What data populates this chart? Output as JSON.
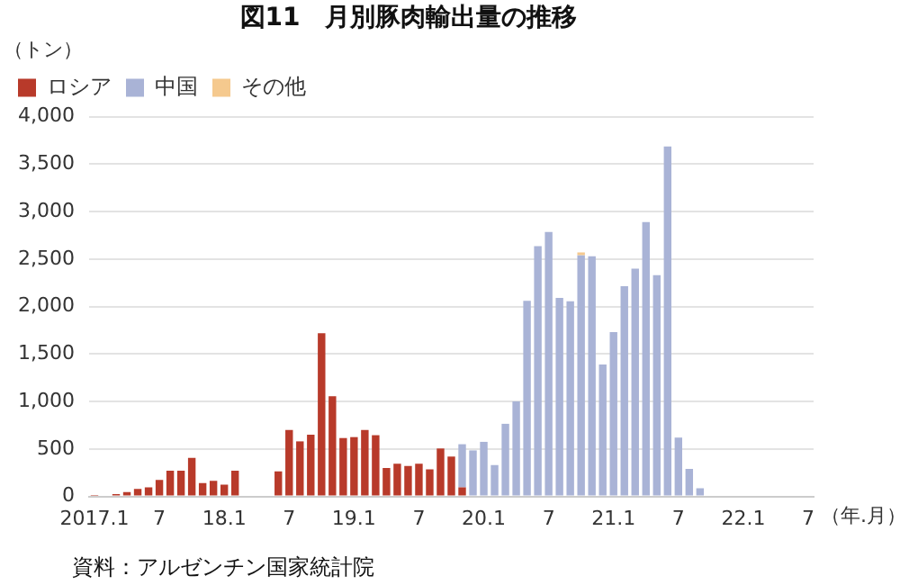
{
  "chart_data": {
    "type": "bar",
    "title": "図11　月別豚肉輸出量の推移",
    "ylabel": "（トン）",
    "xlabel": "（年.月）",
    "annotations": [
      "資料：アルゼンチン国家統計院"
    ],
    "categories": [
      "2017.1",
      null,
      null,
      null,
      null,
      null,
      "7",
      null,
      null,
      null,
      null,
      null,
      "18.1",
      null,
      null,
      null,
      null,
      null,
      "7",
      null,
      null,
      null,
      null,
      null,
      "19.1",
      null,
      null,
      null,
      null,
      null,
      "7",
      null,
      null,
      null,
      null,
      null,
      "20.1",
      null,
      null,
      null,
      null,
      null,
      "7",
      null,
      null,
      null,
      null,
      null,
      "21.1",
      null,
      null,
      null,
      null,
      null,
      "7",
      null,
      null,
      null,
      null,
      null,
      "22.1",
      null,
      null,
      null,
      null,
      null,
      "7"
    ],
    "series": [
      {
        "name": "ロシア",
        "color": "#b83a2a",
        "values": [
          15,
          null,
          25,
          45,
          80,
          95,
          175,
          270,
          270,
          405,
          140,
          165,
          125,
          270,
          null,
          null,
          null,
          265,
          700,
          580,
          650,
          1720,
          1055,
          615,
          625,
          700,
          645,
          300,
          345,
          320,
          345,
          285,
          505,
          420,
          95,
          null,
          null,
          null,
          null,
          null,
          null,
          null,
          null,
          null,
          null,
          null,
          null,
          null,
          null,
          null,
          null,
          null,
          null,
          null,
          null,
          null,
          null,
          null,
          null,
          null,
          null,
          null,
          null,
          null,
          null,
          null,
          null
        ]
      },
      {
        "name": "中国",
        "color": "#a9b3d6",
        "values": [
          null,
          null,
          null,
          null,
          null,
          null,
          null,
          null,
          null,
          null,
          null,
          null,
          null,
          null,
          null,
          null,
          null,
          null,
          null,
          null,
          null,
          null,
          null,
          null,
          null,
          null,
          null,
          null,
          null,
          null,
          null,
          null,
          null,
          null,
          455,
          485,
          575,
          330,
          765,
          1000,
          2060,
          2635,
          2785,
          2090,
          2055,
          2540,
          2530,
          1390,
          1730,
          2215,
          2400,
          2890,
          2330,
          3685,
          620,
          290,
          87,
          null,
          null,
          null,
          null,
          null,
          null,
          null,
          null,
          null,
          null
        ]
      },
      {
        "name": "その他",
        "color": "#f5c98e",
        "values": [
          null,
          null,
          null,
          null,
          null,
          null,
          null,
          null,
          null,
          null,
          null,
          null,
          null,
          null,
          null,
          null,
          null,
          null,
          null,
          null,
          null,
          null,
          null,
          null,
          null,
          null,
          null,
          null,
          null,
          null,
          null,
          null,
          null,
          null,
          null,
          null,
          null,
          null,
          null,
          null,
          null,
          null,
          null,
          null,
          null,
          30,
          null,
          null,
          null,
          null,
          null,
          null,
          null,
          null,
          null,
          null,
          null,
          null,
          null,
          null,
          null,
          null,
          null,
          null,
          null,
          null,
          null
        ]
      }
    ],
    "stacked": true,
    "ylim": [
      0,
      4000
    ],
    "yticks": [
      0,
      500,
      {
        "value": 1000,
        "label": "1,000"
      },
      {
        "value": 1500,
        "label": "1,500"
      },
      {
        "value": 2000,
        "label": "2,000"
      },
      {
        "value": 2500,
        "label": "2,500"
      },
      {
        "value": 3000,
        "label": "3,000"
      },
      {
        "value": 3500,
        "label": "3,500"
      },
      {
        "value": 4000,
        "label": "4,000"
      }
    ],
    "grid": "y",
    "legend": "top left"
  }
}
